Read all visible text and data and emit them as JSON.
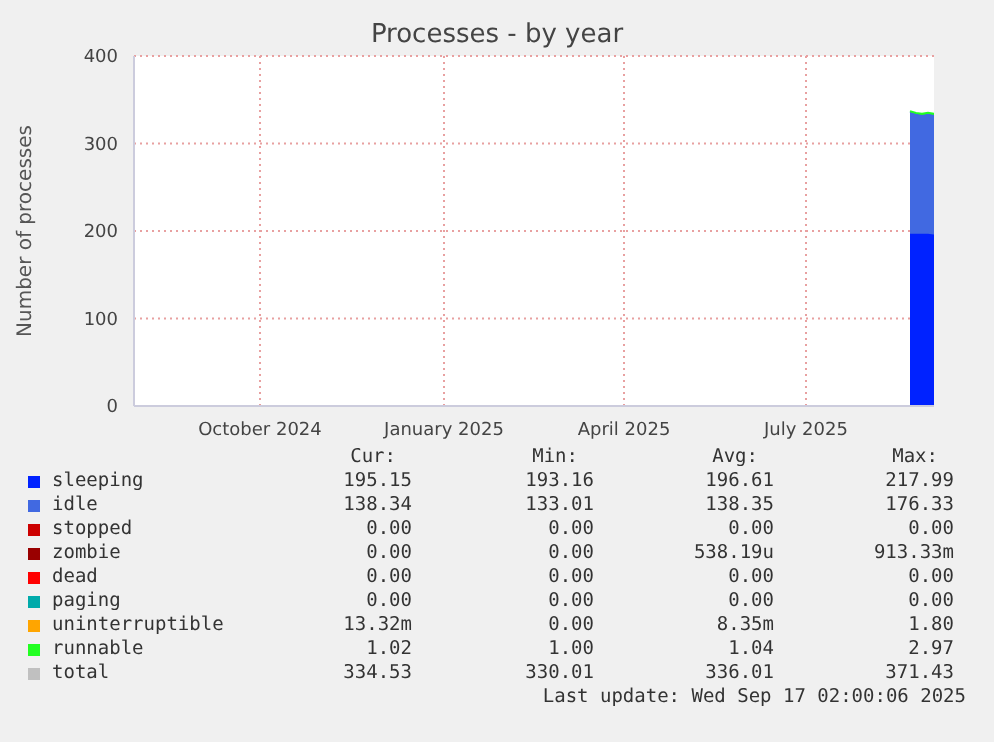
{
  "chart_data": {
    "type": "area",
    "title": "Processes - by year",
    "ylabel": "Number of processes",
    "x": [
      "2025-09-05",
      "2025-09-08",
      "2025-09-11",
      "2025-09-14",
      "2025-09-17"
    ],
    "xlim": [
      "2024-08-13",
      "2025-09-17"
    ],
    "xticks": [
      {
        "value": "2024-10-15",
        "label": "October 2024"
      },
      {
        "value": "2025-01-15",
        "label": "January 2025"
      },
      {
        "value": "2025-04-15",
        "label": "April 2025"
      },
      {
        "value": "2025-07-15",
        "label": "July 2025"
      }
    ],
    "ylim": [
      0,
      400
    ],
    "yticks": [
      0,
      100,
      200,
      300,
      400
    ],
    "stacked": true,
    "grid": true,
    "legend": "bottom",
    "series": [
      {
        "name": "sleeping",
        "color": "#0022ff",
        "values": [
          197,
          197,
          197,
          197,
          196
        ]
      },
      {
        "name": "idle",
        "color": "#4169e1",
        "values": [
          139,
          137,
          136,
          137,
          137
        ]
      },
      {
        "name": "stopped",
        "color": "#cc0000",
        "values": [
          null,
          null,
          null,
          null,
          null
        ]
      },
      {
        "name": "zombie",
        "color": "#990000",
        "values": [
          null,
          null,
          null,
          null,
          null
        ]
      },
      {
        "name": "dead",
        "color": "#ff0000",
        "values": [
          null,
          null,
          null,
          null,
          null
        ]
      },
      {
        "name": "paging",
        "color": "#00aaaa",
        "values": [
          null,
          null,
          null,
          null,
          null
        ]
      },
      {
        "name": "uninterruptible",
        "color": "#ffa500",
        "values": [
          null,
          null,
          null,
          null,
          null
        ]
      },
      {
        "name": "runnable",
        "color": "#22ff22",
        "values": [
          1,
          1,
          1,
          1,
          1
        ]
      },
      {
        "name": "total",
        "color": "#c0c0c0",
        "values": [
          null,
          null,
          null,
          null,
          null
        ]
      }
    ],
    "annotations": [
      "Cur:",
      "Min:",
      "Avg:",
      "Max:",
      "195.15",
      "193.16",
      "196.61",
      "217.99",
      "138.34",
      "133.01",
      "138.35",
      "176.33",
      "0.00",
      "0.00",
      "0.00",
      "0.00",
      "0.00",
      "0.00",
      "538.19u",
      "913.33m",
      "0.00",
      "0.00",
      "0.00",
      "0.00",
      "0.00",
      "0.00",
      "0.00",
      "0.00",
      "13.32m",
      "0.00",
      "8.35m",
      "1.80",
      "1.02",
      "1.00",
      "1.04",
      "2.97",
      "334.53",
      "330.01",
      "336.01",
      "371.43",
      "Last update: Wed Sep 17 02:00:06 2025"
    ]
  }
}
